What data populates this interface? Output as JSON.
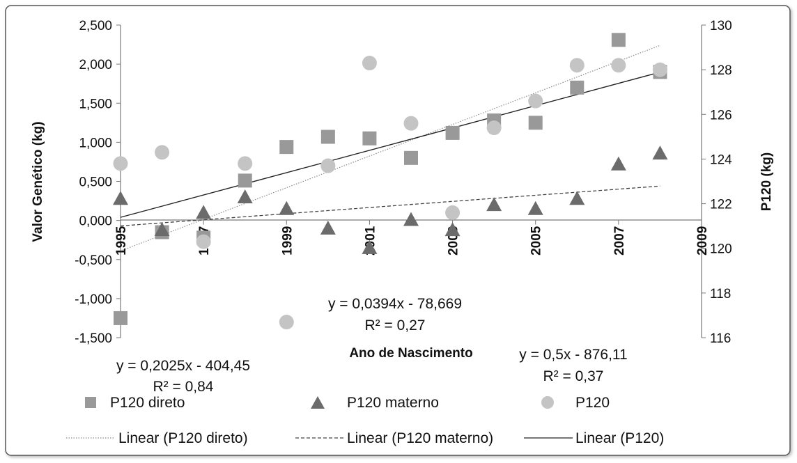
{
  "chart_data": {
    "type": "scatter",
    "xlabel": "Ano de Nascimento",
    "ylabel_left": "Valor Genético (kg)",
    "ylabel_right": "P120 (kg)",
    "xlim": [
      1995,
      2009
    ],
    "x_ticks": [
      "1995",
      "1997",
      "1999",
      "2001",
      "2003",
      "2005",
      "2007",
      "2009"
    ],
    "ylim_left": [
      -1.5,
      2.5
    ],
    "y_ticks_left": [
      "2,500",
      "2,000",
      "1,500",
      "1,000",
      "0,500",
      "0,000",
      "-0,500",
      "-1,000",
      "-1,500"
    ],
    "ylim_right": [
      116,
      130
    ],
    "y_ticks_right": [
      "130",
      "128",
      "126",
      "124",
      "122",
      "120",
      "118",
      "116"
    ],
    "grid": false,
    "legend_position": "bottom",
    "series": [
      {
        "name": "P120 direto",
        "axis": "left",
        "marker": "square",
        "color": "#999999",
        "x": [
          1995,
          1996,
          1997,
          1998,
          1999,
          2000,
          2001,
          2002,
          2003,
          2004,
          2005,
          2006,
          2007,
          2008
        ],
        "y": [
          -1.25,
          -0.15,
          -0.22,
          0.51,
          0.94,
          1.07,
          1.05,
          0.8,
          1.12,
          1.28,
          1.25,
          1.7,
          2.31,
          1.9
        ]
      },
      {
        "name": "P120 materno",
        "axis": "left",
        "marker": "triangle",
        "color": "#6b6b6b",
        "x": [
          1995,
          1996,
          1997,
          1998,
          1999,
          2000,
          2001,
          2002,
          2003,
          2004,
          2005,
          2006,
          2007,
          2008
        ],
        "y": [
          0.28,
          -0.12,
          0.1,
          0.3,
          0.15,
          -0.1,
          -0.35,
          0.01,
          -0.12,
          0.2,
          0.15,
          0.28,
          0.72,
          0.86
        ]
      },
      {
        "name": "P120",
        "axis": "right",
        "marker": "circle",
        "color": "#c4c4c4",
        "x": [
          1995,
          1996,
          1997,
          1998,
          1999,
          2000,
          2001,
          2002,
          2003,
          2004,
          2005,
          2006,
          2007,
          2008
        ],
        "y": [
          123.8,
          124.3,
          120.3,
          123.8,
          116.7,
          123.7,
          128.3,
          125.6,
          121.6,
          125.4,
          126.6,
          128.2,
          128.2,
          128.0
        ]
      }
    ],
    "trendlines": [
      {
        "name": "Linear (P120 direto)",
        "axis": "left",
        "style": "dotted",
        "x": [
          1995,
          2008
        ],
        "y": [
          -0.39,
          2.24
        ],
        "equation": "y = 0,2025x - 404,45",
        "r2": "R² = 0,84"
      },
      {
        "name": "Linear (P120 materno)",
        "axis": "left",
        "style": "dashed",
        "x": [
          1995,
          2008
        ],
        "y": [
          -0.07,
          0.44
        ],
        "equation": "y = 0,0394x - 78,669",
        "r2": "R² = 0,27"
      },
      {
        "name": "Linear (P120)",
        "axis": "right",
        "style": "solid",
        "x": [
          1995,
          2008
        ],
        "y": [
          121.39,
          127.89
        ],
        "equation": "y = 0,5x - 876,11",
        "r2": "R² = 0,37"
      }
    ]
  }
}
